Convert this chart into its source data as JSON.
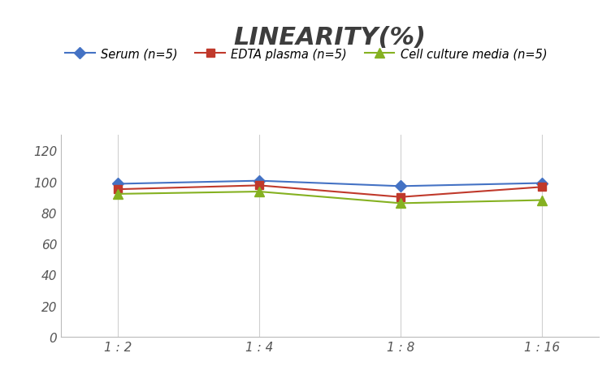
{
  "title": "LINEARITY(%)",
  "x_labels": [
    "1 : 2",
    "1 : 4",
    "1 : 8",
    "1 : 16"
  ],
  "x_positions": [
    0,
    1,
    2,
    3
  ],
  "series": [
    {
      "label": "Serum (n=5)",
      "values": [
        98.5,
        100.5,
        97.0,
        99.0
      ],
      "color": "#4472C4",
      "marker": "D",
      "markersize": 7
    },
    {
      "label": "EDTA plasma (n=5)",
      "values": [
        95.0,
        97.5,
        90.0,
        96.5
      ],
      "color": "#C0392B",
      "marker": "s",
      "markersize": 7
    },
    {
      "label": "Cell culture media (n=5)",
      "values": [
        92.0,
        93.5,
        86.0,
        88.0
      ],
      "color": "#85B121",
      "marker": "^",
      "markersize": 8
    }
  ],
  "ylim": [
    0,
    130
  ],
  "yticks": [
    0,
    20,
    40,
    60,
    80,
    100,
    120
  ],
  "xlim": [
    -0.4,
    3.4
  ],
  "grid_color": "#D0D0D0",
  "background_color": "#FFFFFF",
  "title_fontsize": 22,
  "legend_fontsize": 10.5,
  "tick_fontsize": 11,
  "spine_color": "#BBBBBB",
  "title_color": "#3D3D3D"
}
